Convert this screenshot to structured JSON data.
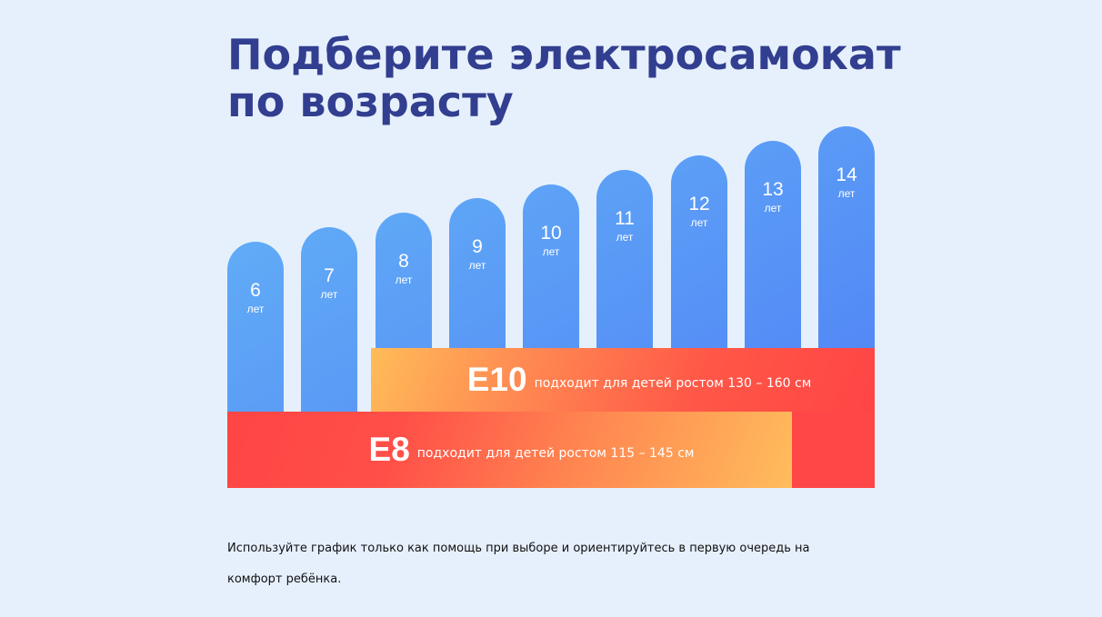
{
  "title": "Подберите электросамокат по возрасту",
  "chart_data": {
    "type": "bar",
    "categories": [
      "6",
      "7",
      "8",
      "9",
      "10",
      "11",
      "12",
      "13",
      "14"
    ],
    "values": [
      6,
      7,
      8,
      9,
      10,
      11,
      12,
      13,
      14
    ],
    "unit_label": "лет",
    "ranges": [
      {
        "model": "E10",
        "text": "подходит для детей ростом 130 – 160 см",
        "from_age": 8,
        "to_age": 14
      },
      {
        "model": "E8",
        "text": "подходит для детей ростом 115 – 145 см",
        "from_age": 6,
        "to_age": 13
      }
    ]
  },
  "colors": {
    "title": "#323e8f",
    "bar_top_left": "#64b4f7",
    "bar_top_right": "#4f7ef5",
    "band_warm": "#ffbc58",
    "band_red": "#ff4545",
    "background": "#e6f0fc"
  },
  "footer_note": "Используйте график только как помощь при выборе и ориентируйтесь в первую очередь на комфорт ребёнка."
}
